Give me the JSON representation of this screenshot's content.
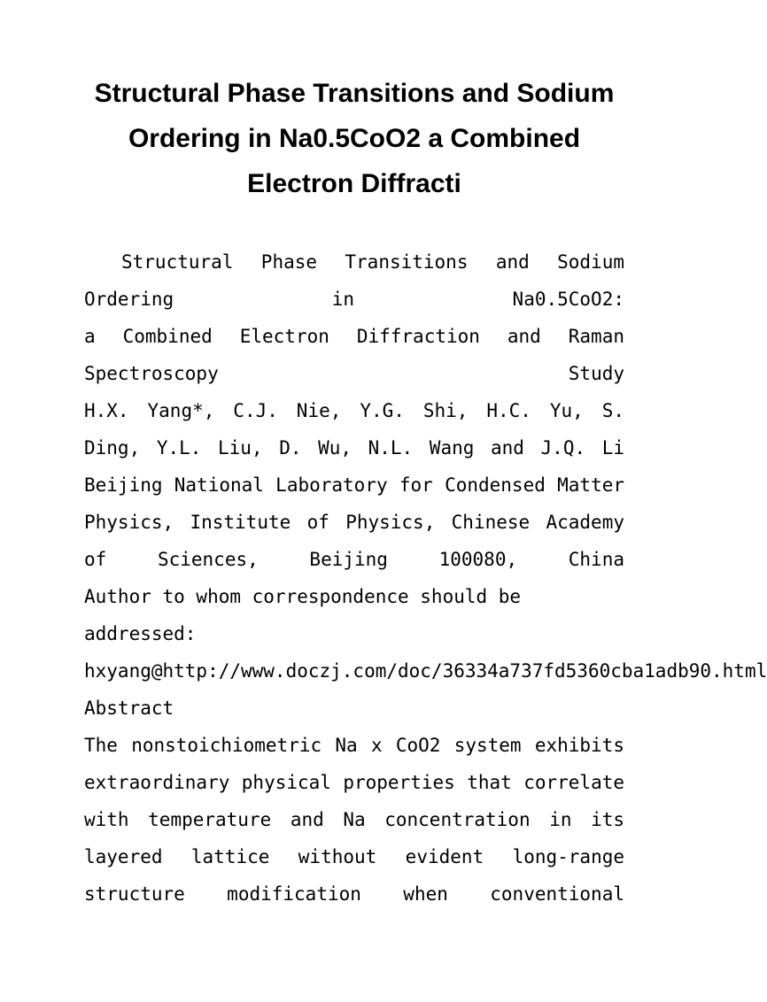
{
  "title": "Structural Phase Transitions and Sodium Ordering in Na0.5CoO2 a Combined Electron Diffracti",
  "paragraphs": {
    "intro_line": "Structural Phase Transitions and Sodium Ordering in Na0.5CoO2:",
    "subtitle": "a Combined Electron Diffraction and Raman Spectroscopy Study",
    "authors": "H.X. Yang*, C.J. Nie, Y.G. Shi, H.C. Yu, S. Ding, Y.L. Liu, D. Wu, N.L. Wang and J.Q. Li",
    "affiliation": "Beijing National Laboratory for Condensed Matter Physics, Institute of Physics, Chinese Academy of Sciences, Beijing 100080, China",
    "correspondence": "Author to whom correspondence should be addressed: hxyang@http://www.doczj.com/doc/36334a737fd5360cba1adb90.html",
    "abstract_heading": "Abstract",
    "abstract_body": "The nonstoichiometric Na x CoO2 system exhibits extraordinary physical properties that correlate with temperature and Na concentration in its layered lattice without evident long-range structure modification when conventional"
  },
  "styles": {
    "background_color": "#ffffff",
    "text_color": "#000000",
    "title_fontsize": 30,
    "body_fontsize": 21
  }
}
